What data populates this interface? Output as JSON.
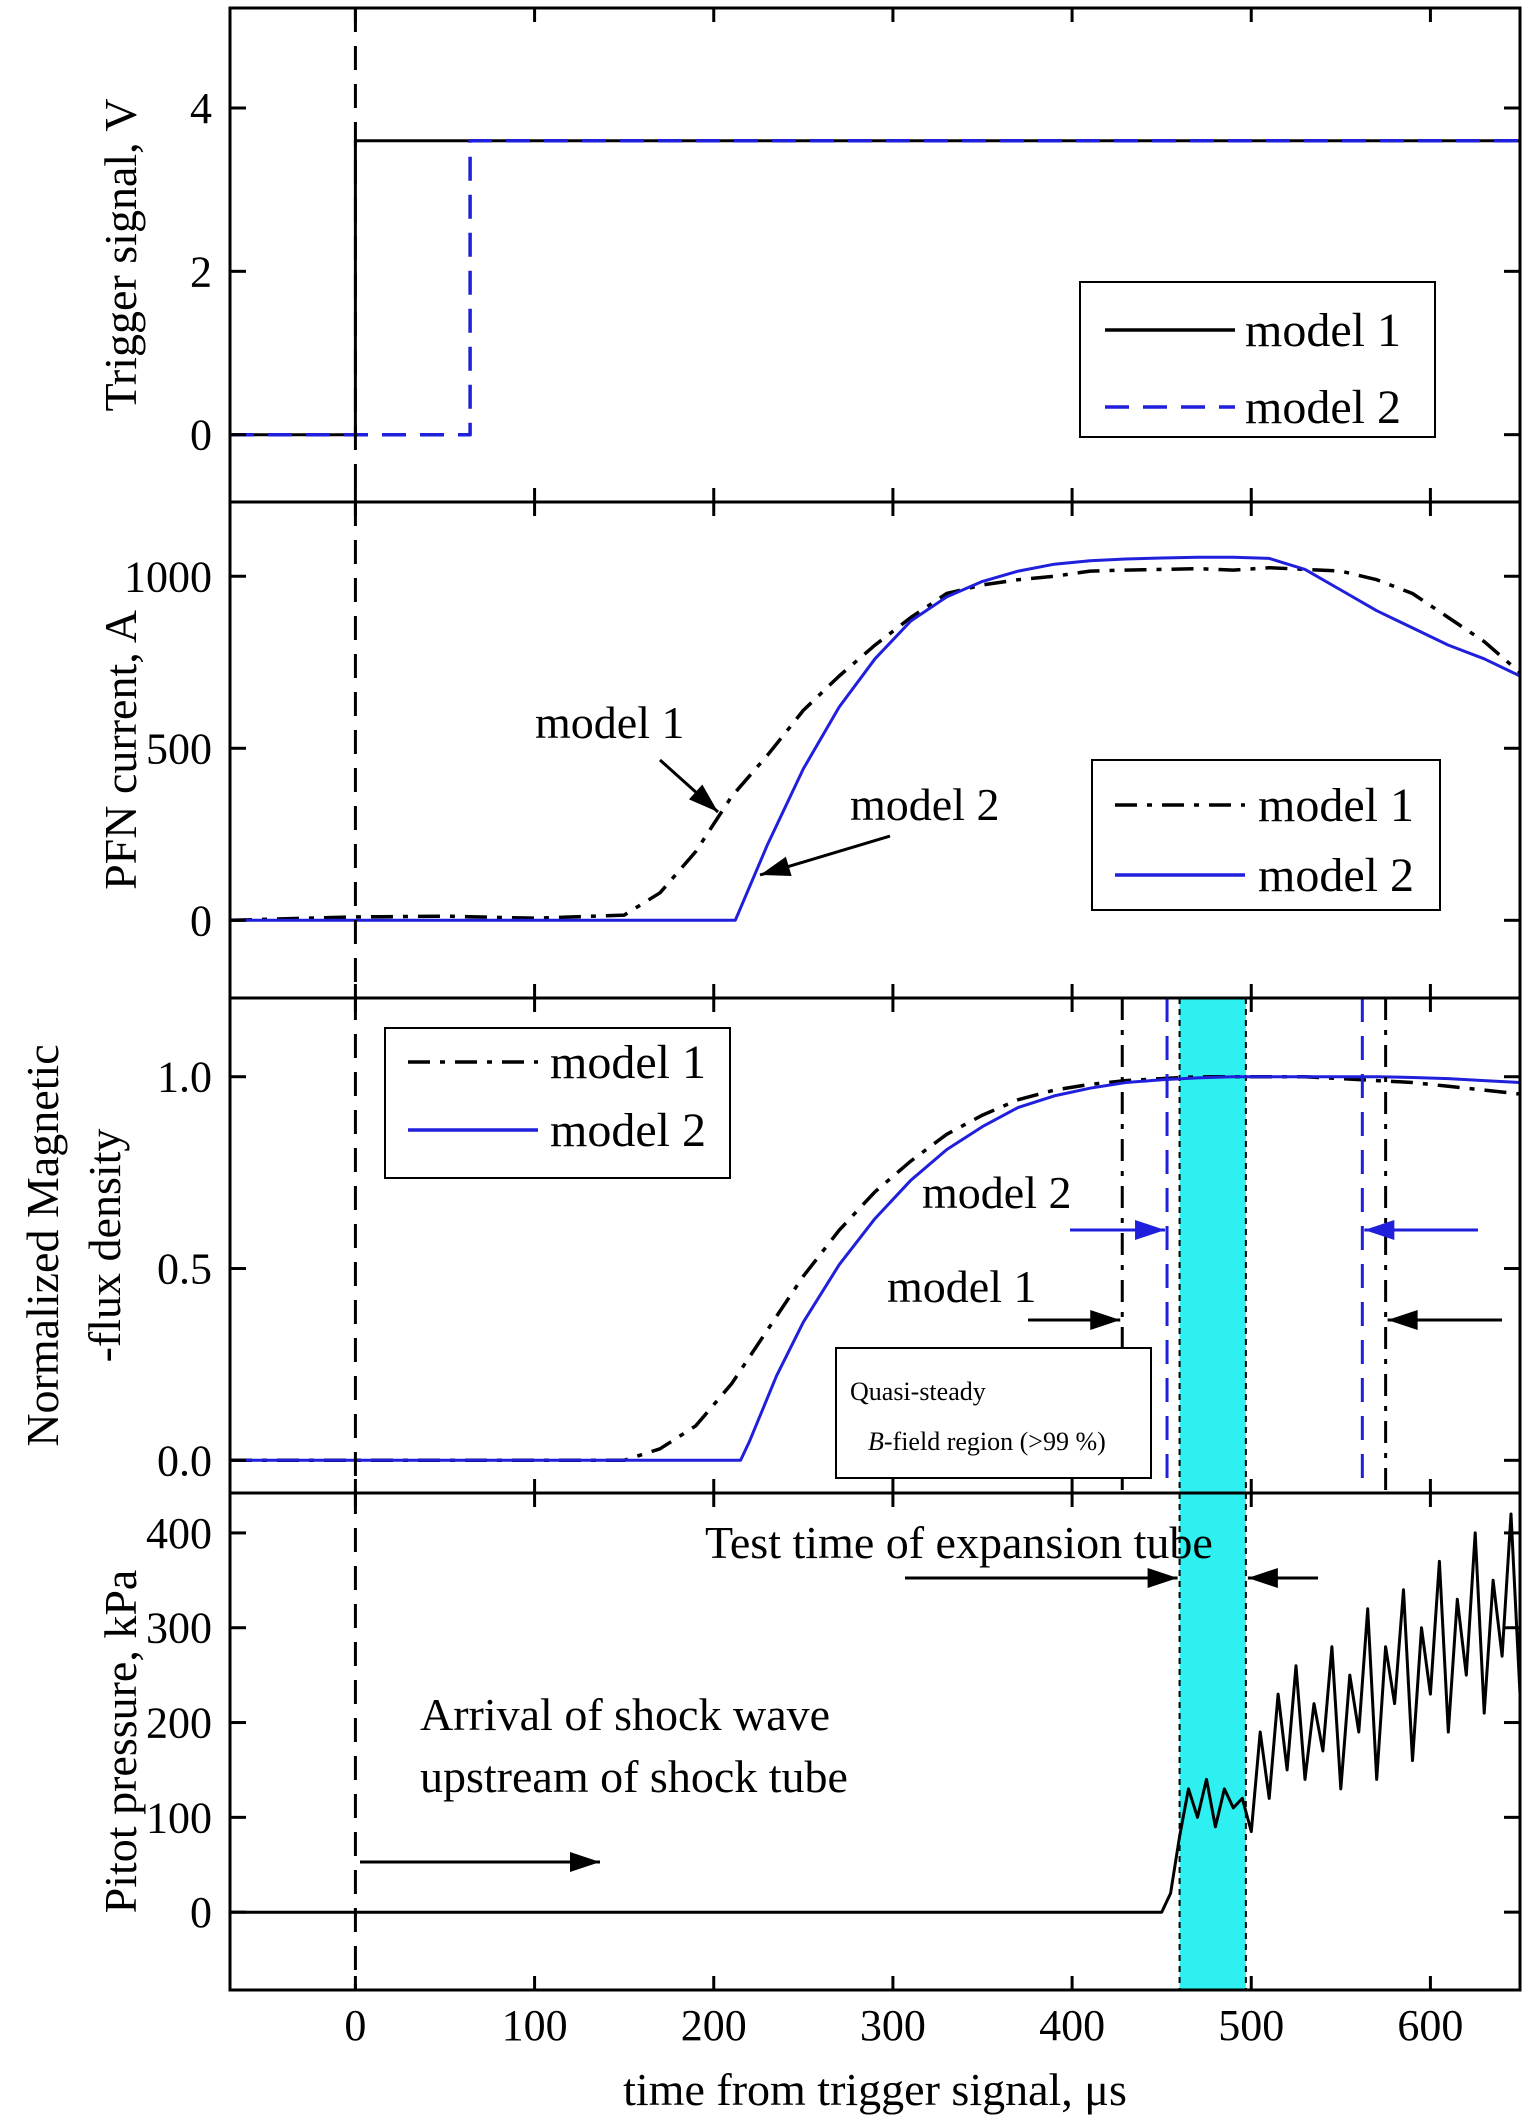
{
  "figure": {
    "xlabel": "time from trigger signal, μs",
    "xlim": [
      -70,
      650
    ],
    "xticks": [
      0,
      100,
      200,
      300,
      400,
      500,
      600
    ]
  },
  "colors": {
    "black": "#000000",
    "blue": "#1f1fdc",
    "cyan": "#2ef0f0"
  },
  "chart_data": [
    {
      "id": "trigger",
      "type": "line",
      "ylabel": "Trigger signal, V",
      "ylim": [
        -0.8,
        5.2
      ],
      "yticks": [
        0,
        2,
        4
      ],
      "legend_position": "right",
      "series": [
        {
          "name": "model 1",
          "style": "solid",
          "color": "#000000",
          "x": [
            -70,
            0,
            0,
            650
          ],
          "y": [
            0,
            0,
            3.6,
            3.6
          ]
        },
        {
          "name": "model 2",
          "style": "dashed",
          "color": "#1f1fdc",
          "x": [
            -70,
            64,
            64,
            650
          ],
          "y": [
            0,
            0,
            3.6,
            3.6
          ]
        }
      ]
    },
    {
      "id": "pfn",
      "type": "line",
      "ylabel": "PFN current, A",
      "ylim": [
        -220,
        1210
      ],
      "yticks": [
        0,
        500,
        1000
      ],
      "legend_position": "right",
      "annotations": [
        {
          "text": "model 1"
        },
        {
          "text": "model 2"
        }
      ],
      "series": [
        {
          "name": "model 1",
          "style": "dashdot",
          "color": "#000000",
          "x": [
            -70,
            0,
            50,
            100,
            150,
            170,
            190,
            210,
            230,
            250,
            270,
            290,
            310,
            330,
            350,
            370,
            390,
            410,
            430,
            450,
            470,
            490,
            510,
            530,
            550,
            570,
            590,
            610,
            630,
            650
          ],
          "y": [
            0,
            10,
            12,
            6,
            15,
            80,
            200,
            360,
            480,
            610,
            710,
            800,
            880,
            950,
            975,
            990,
            1000,
            1015,
            1018,
            1020,
            1022,
            1018,
            1025,
            1020,
            1015,
            990,
            950,
            880,
            810,
            720
          ]
        },
        {
          "name": "model 2",
          "style": "solid",
          "color": "#1f1fdc",
          "x": [
            -70,
            0,
            100,
            200,
            212,
            230,
            250,
            270,
            290,
            310,
            330,
            350,
            370,
            390,
            410,
            430,
            450,
            470,
            490,
            510,
            530,
            550,
            570,
            590,
            610,
            630,
            650
          ],
          "y": [
            0,
            0,
            0,
            0,
            0,
            220,
            440,
            620,
            760,
            870,
            940,
            985,
            1015,
            1035,
            1045,
            1050,
            1053,
            1055,
            1055,
            1052,
            1020,
            960,
            900,
            850,
            800,
            760,
            710
          ]
        }
      ]
    },
    {
      "id": "magnetic",
      "type": "line",
      "ylabel": [
        "Normalized Magnetic",
        "-flux density"
      ],
      "ylim": [
        -0.08,
        1.2
      ],
      "yticks": [
        0.0,
        0.5,
        1.0
      ],
      "yticklabels": [
        "0.0",
        "0.5",
        "1.0"
      ],
      "legend_position": "top-left",
      "annotations": [
        {
          "text": "model 2"
        },
        {
          "text": "model 1"
        },
        {
          "text": "Quasi-steady"
        },
        {
          "text": "B",
          "suffix": "-field region (>99 %)"
        }
      ],
      "vlines": [
        {
          "x": 428,
          "color": "#000000",
          "style": "dashdot"
        },
        {
          "x": 453,
          "color": "#1f1fdc",
          "style": "dashed"
        },
        {
          "x": 562,
          "color": "#1f1fdc",
          "style": "dashed"
        },
        {
          "x": 575,
          "color": "#000000",
          "style": "dashdot"
        }
      ],
      "series": [
        {
          "name": "model 1",
          "style": "dashdot",
          "color": "#000000",
          "x": [
            -70,
            0,
            100,
            150,
            170,
            190,
            210,
            230,
            250,
            270,
            290,
            310,
            330,
            350,
            370,
            390,
            410,
            430,
            450,
            470,
            490,
            510,
            530,
            550,
            570,
            590,
            610,
            630,
            650
          ],
          "y": [
            0,
            0,
            0,
            0,
            0.03,
            0.09,
            0.2,
            0.34,
            0.48,
            0.6,
            0.7,
            0.78,
            0.85,
            0.9,
            0.94,
            0.965,
            0.98,
            0.99,
            0.995,
            1.0,
            1.0,
            1.0,
            1.0,
            0.995,
            0.99,
            0.985,
            0.975,
            0.965,
            0.955
          ]
        },
        {
          "name": "model 2",
          "style": "solid",
          "color": "#1f1fdc",
          "x": [
            -70,
            0,
            100,
            200,
            215,
            220,
            235,
            250,
            270,
            290,
            310,
            330,
            350,
            370,
            390,
            410,
            430,
            450,
            470,
            490,
            510,
            530,
            550,
            570,
            590,
            610,
            630,
            650
          ],
          "y": [
            0,
            0,
            0,
            0,
            0,
            0.05,
            0.22,
            0.36,
            0.51,
            0.63,
            0.73,
            0.81,
            0.87,
            0.92,
            0.95,
            0.97,
            0.985,
            0.992,
            0.997,
            1.0,
            1.0,
            1.0,
            1.0,
            1.0,
            0.998,
            0.995,
            0.99,
            0.985
          ]
        }
      ]
    },
    {
      "id": "pitot",
      "type": "line",
      "ylabel": "Pitot pressure, kPa",
      "ylim": [
        -80,
        440
      ],
      "yticks": [
        0,
        100,
        200,
        300,
        400
      ],
      "annotations": [
        {
          "text": "Test time of expansion tube"
        },
        {
          "text": "Arrival of shock wave"
        },
        {
          "text": "upstream of shock tube"
        }
      ],
      "series": [
        {
          "name": "",
          "style": "solid",
          "color": "#000000",
          "x": [
            -70,
            0,
            100,
            200,
            300,
            400,
            450,
            455,
            460,
            465,
            470,
            475,
            480,
            485,
            490,
            495,
            500,
            505,
            510,
            515,
            520,
            525,
            530,
            535,
            540,
            545,
            550,
            555,
            560,
            565,
            570,
            575,
            580,
            585,
            590,
            595,
            600,
            605,
            610,
            615,
            620,
            625,
            630,
            635,
            640,
            645,
            650
          ],
          "y": [
            0,
            0,
            0,
            0,
            0,
            0,
            0,
            20,
            80,
            130,
            100,
            140,
            90,
            130,
            110,
            120,
            85,
            190,
            120,
            230,
            150,
            260,
            140,
            220,
            170,
            280,
            130,
            250,
            190,
            320,
            140,
            280,
            220,
            340,
            160,
            300,
            230,
            370,
            190,
            330,
            250,
            400,
            210,
            350,
            270,
            420,
            230
          ]
        }
      ]
    }
  ],
  "shaded_region": {
    "x0": 460,
    "x1": 497,
    "color": "#2ef0f0"
  }
}
